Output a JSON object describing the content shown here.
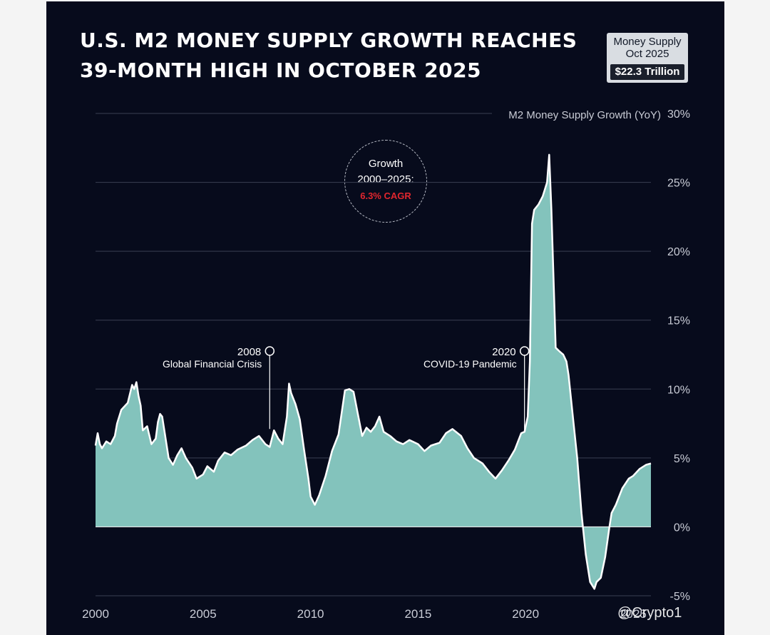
{
  "header": {
    "title_line1": "U.S. M2 MONEY SUPPLY GROWTH REACHES",
    "title_line2": "39-MONTH HIGH IN OCTOBER 2025"
  },
  "badge": {
    "line1": "Money Supply",
    "line2": "Oct 2025",
    "value": "$22.3 Trillion"
  },
  "callout": {
    "line1": "Growth",
    "line2": "2000–2025:",
    "line3": "6.3% CAGR"
  },
  "watermark": "@Crypto1",
  "colors": {
    "background": "#070b1c",
    "area_fill": "#83c3bc",
    "line": "#ffffff",
    "grid": "#3a3f52",
    "accent_red": "#e0262e"
  },
  "chart_data": {
    "type": "area",
    "title": "U.S. M2 Money Supply Growth Reaches 39-Month High in October 2025",
    "series_label": "M2 Money Supply Growth (YoY)",
    "xlabel": "",
    "ylabel": "",
    "xlim": [
      2000,
      2025.83
    ],
    "ylim": [
      -5,
      30
    ],
    "grid": true,
    "x_ticks": [
      2000,
      2005,
      2010,
      2015,
      2020,
      2025
    ],
    "x_tick_labels": [
      "2000",
      "2005",
      "2010",
      "2015",
      "2020",
      "2025"
    ],
    "y_ticks": [
      -5,
      0,
      5,
      10,
      15,
      20,
      25,
      30
    ],
    "y_tick_labels": [
      "-5%",
      "0%",
      "5%",
      "10%",
      "15%",
      "20%",
      "25%",
      "30%"
    ],
    "x": [
      2000.0,
      2000.1,
      2000.2,
      2000.3,
      2000.5,
      2000.7,
      2000.9,
      2001.0,
      2001.2,
      2001.5,
      2001.7,
      2001.8,
      2001.9,
      2002.0,
      2002.1,
      2002.2,
      2002.4,
      2002.6,
      2002.8,
      2002.9,
      2003.0,
      2003.1,
      2003.3,
      2003.4,
      2003.6,
      2003.8,
      2004.0,
      2004.2,
      2004.5,
      2004.7,
      2005.0,
      2005.2,
      2005.5,
      2005.7,
      2006.0,
      2006.3,
      2006.6,
      2007.0,
      2007.3,
      2007.6,
      2007.9,
      2008.1,
      2008.3,
      2008.5,
      2008.7,
      2008.9,
      2009.0,
      2009.1,
      2009.3,
      2009.5,
      2009.7,
      2009.9,
      2010.0,
      2010.2,
      2010.4,
      2010.7,
      2011.0,
      2011.3,
      2011.6,
      2011.8,
      2012.0,
      2012.2,
      2012.4,
      2012.6,
      2012.8,
      2013.0,
      2013.2,
      2013.4,
      2013.7,
      2014.0,
      2014.3,
      2014.6,
      2015.0,
      2015.3,
      2015.6,
      2016.0,
      2016.3,
      2016.6,
      2017.0,
      2017.3,
      2017.6,
      2018.0,
      2018.3,
      2018.6,
      2018.9,
      2019.2,
      2019.5,
      2019.8,
      2019.95,
      2020.1,
      2020.2,
      2020.3,
      2020.4,
      2020.6,
      2020.8,
      2021.0,
      2021.1,
      2021.2,
      2021.4,
      2021.6,
      2021.75,
      2021.9,
      2022.0,
      2022.2,
      2022.4,
      2022.6,
      2022.8,
      2023.0,
      2023.2,
      2023.3,
      2023.5,
      2023.7,
      2023.9,
      2024.0,
      2024.2,
      2024.5,
      2024.8,
      2025.0,
      2025.3,
      2025.6,
      2025.83
    ],
    "values": [
      5.9,
      6.8,
      6.0,
      5.7,
      6.2,
      6.0,
      6.6,
      7.5,
      8.5,
      9.0,
      10.3,
      10.0,
      10.5,
      9.5,
      8.8,
      7.0,
      7.3,
      6.0,
      6.4,
      7.6,
      8.2,
      8.0,
      6.0,
      5.0,
      4.5,
      5.2,
      5.7,
      5.0,
      4.3,
      3.5,
      3.8,
      4.4,
      4.0,
      4.8,
      5.4,
      5.2,
      5.6,
      5.9,
      6.3,
      6.6,
      6.0,
      5.8,
      7.0,
      6.4,
      6.0,
      8.0,
      10.4,
      9.7,
      8.9,
      7.8,
      5.6,
      3.5,
      2.2,
      1.6,
      2.3,
      3.7,
      5.5,
      6.7,
      9.9,
      10.0,
      9.8,
      8.2,
      6.6,
      7.2,
      6.9,
      7.3,
      8.0,
      6.9,
      6.6,
      6.2,
      6.0,
      6.3,
      6.0,
      5.5,
      5.9,
      6.1,
      6.8,
      7.1,
      6.6,
      5.7,
      5.0,
      4.6,
      4.0,
      3.5,
      4.1,
      4.8,
      5.6,
      6.8,
      6.9,
      8.0,
      12.0,
      22.0,
      23.0,
      23.4,
      24.0,
      25.0,
      27.0,
      23.0,
      13.0,
      12.7,
      12.5,
      12.0,
      11.0,
      8.0,
      5.0,
      1.0,
      -2.0,
      -4.0,
      -4.5,
      -4.0,
      -3.7,
      -2.2,
      0.0,
      1.0,
      1.6,
      2.8,
      3.5,
      3.7,
      4.2,
      4.5,
      4.6
    ],
    "annotations": [
      {
        "x": 2008.1,
        "y": 7.0,
        "year_label": "2008",
        "text": "Global Financial Crisis"
      },
      {
        "x": 2019.95,
        "y": 6.9,
        "year_label": "2020",
        "text": "COVID-19 Pandemic"
      }
    ]
  }
}
